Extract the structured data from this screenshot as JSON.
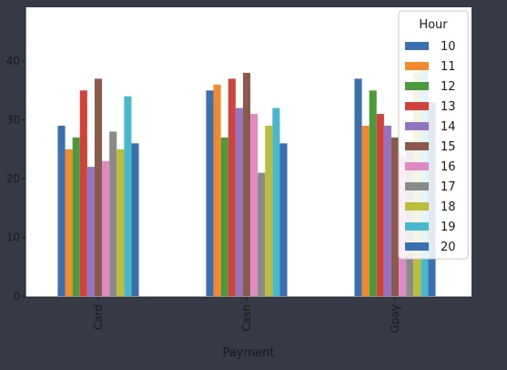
{
  "chart_data": {
    "type": "bar",
    "title": "",
    "xlabel": "Payment",
    "ylabel": "",
    "categories": [
      "Card",
      "Cash",
      "Gpay"
    ],
    "ylim": [
      0,
      48
    ],
    "yticks": [
      0,
      10,
      20,
      30,
      40
    ],
    "grid": false,
    "legend": {
      "title": "Hour",
      "placement": "top-right"
    },
    "series": [
      {
        "name": "10",
        "color": "#3a6fb0",
        "values": [
          29,
          35,
          37
        ]
      },
      {
        "name": "11",
        "color": "#f08a2c",
        "values": [
          25,
          36,
          29
        ]
      },
      {
        "name": "12",
        "color": "#4a9a3c",
        "values": [
          27,
          27,
          35
        ]
      },
      {
        "name": "13",
        "color": "#d0423a",
        "values": [
          35,
          37,
          31
        ]
      },
      {
        "name": "14",
        "color": "#9474c0",
        "values": [
          22,
          32,
          29
        ]
      },
      {
        "name": "15",
        "color": "#8c5a4c",
        "values": [
          37,
          38,
          27
        ]
      },
      {
        "name": "16",
        "color": "#e08ac4",
        "values": [
          23,
          31,
          24
        ]
      },
      {
        "name": "17",
        "color": "#8a8a8a",
        "values": [
          28,
          21,
          25
        ]
      },
      {
        "name": "18",
        "color": "#bcbc3a",
        "values": [
          25,
          29,
          38
        ]
      },
      {
        "name": "19",
        "color": "#48b8cc",
        "values": [
          34,
          32,
          40
        ]
      },
      {
        "name": "20",
        "color": "#3a6fb0",
        "values": [
          26,
          26,
          33
        ]
      }
    ]
  }
}
